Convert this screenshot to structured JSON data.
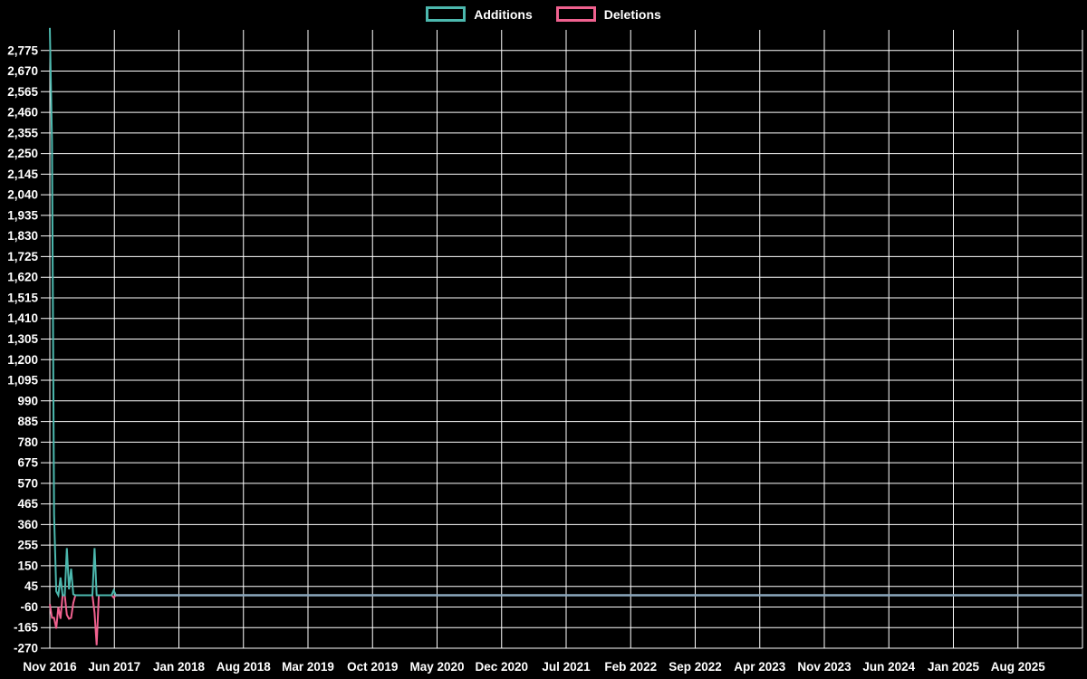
{
  "page": {
    "background": "#000000",
    "text_color": "#ffffff",
    "grid_color": "#ffffff"
  },
  "legend": {
    "position": "top-center"
  },
  "chart_data": {
    "type": "line",
    "title": "",
    "xlabel": "",
    "ylabel": "",
    "grid": true,
    "legend_position": "top-center",
    "x_unit": "weeks since Nov 2016",
    "x_total_weeks": 485,
    "x_tick_labels": [
      "Nov 2016",
      "Jun 2017",
      "Jan 2018",
      "Aug 2018",
      "Mar 2019",
      "Oct 2019",
      "May 2020",
      "Dec 2020",
      "Jul 2021",
      "Feb 2022",
      "Sep 2022",
      "Apr 2023",
      "Nov 2023",
      "Jun 2024",
      "Jan 2025",
      "Aug 2025"
    ],
    "x_tick_interval_months": 7,
    "ylim": [
      -270,
      2880
    ],
    "y_tick_step": 105,
    "y_tick_labels": [
      "2,775",
      "2,670",
      "2,565",
      "2,460",
      "2,355",
      "2,250",
      "2,145",
      "2,040",
      "1,935",
      "1,830",
      "1,725",
      "1,620",
      "1,515",
      "1,410",
      "1,305",
      "1,200",
      "1,095",
      "990",
      "885",
      "780",
      "675",
      "570",
      "465",
      "360",
      "255",
      "150",
      "45",
      "-60",
      "-165",
      "-270"
    ],
    "series": [
      {
        "name": "Additions",
        "color": "#4cb8ae",
        "points": [
          [
            0,
            2890
          ],
          [
            1,
            2310
          ],
          [
            2,
            410
          ],
          [
            3,
            20
          ],
          [
            4,
            0
          ],
          [
            5,
            90
          ],
          [
            6,
            0
          ],
          [
            7,
            0
          ],
          [
            8,
            240
          ],
          [
            9,
            30
          ],
          [
            10,
            135
          ],
          [
            11,
            5
          ],
          [
            12,
            0
          ],
          [
            20,
            0
          ],
          [
            21,
            240
          ],
          [
            22,
            0
          ],
          [
            23,
            0
          ],
          [
            29,
            0
          ],
          [
            30,
            25
          ],
          [
            31,
            0
          ],
          [
            485,
            0
          ]
        ]
      },
      {
        "name": "Deletions",
        "color": "#f0618f",
        "points": [
          [
            0,
            -45
          ],
          [
            1,
            -115
          ],
          [
            2,
            -115
          ],
          [
            3,
            -170
          ],
          [
            4,
            -60
          ],
          [
            5,
            -120
          ],
          [
            6,
            0
          ],
          [
            7,
            0
          ],
          [
            8,
            -100
          ],
          [
            9,
            -120
          ],
          [
            10,
            -115
          ],
          [
            11,
            -40
          ],
          [
            12,
            0
          ],
          [
            20,
            0
          ],
          [
            21,
            -90
          ],
          [
            22,
            -255
          ],
          [
            23,
            0
          ],
          [
            29,
            0
          ],
          [
            30,
            -12
          ],
          [
            31,
            0
          ],
          [
            485,
            0
          ]
        ]
      }
    ],
    "zero_overlap_color": "#8ba7bd"
  }
}
